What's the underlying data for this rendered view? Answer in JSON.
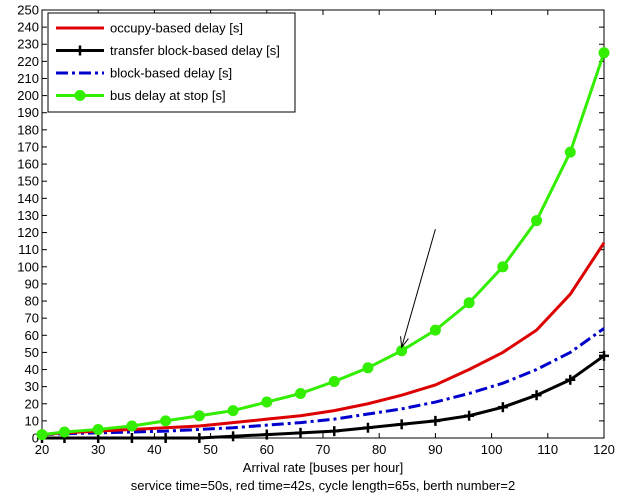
{
  "chart_data": {
    "type": "line",
    "title": "",
    "xlabel": "Arrival rate [buses per hour]",
    "subtitle_below": "service time=50s, red time=42s, cycle length=65s, berth number=2",
    "ylabel": "",
    "xlim": [
      20,
      120
    ],
    "ylim": [
      0,
      250
    ],
    "xticks": [
      20,
      30,
      40,
      50,
      60,
      70,
      80,
      90,
      100,
      110,
      120
    ],
    "yticks": [
      0,
      10,
      20,
      30,
      40,
      50,
      60,
      70,
      80,
      90,
      100,
      110,
      120,
      130,
      140,
      150,
      160,
      170,
      180,
      190,
      200,
      210,
      220,
      230,
      240,
      250
    ],
    "grid": false,
    "legend_position": "top-left",
    "series": [
      {
        "name": "occupy-based delay [s]",
        "color": "#dd0000",
        "style": "solid",
        "marker": "none",
        "x": [
          20,
          24,
          30,
          36,
          42,
          48,
          54,
          60,
          66,
          72,
          78,
          84,
          90,
          96,
          102,
          108,
          114,
          120
        ],
        "y": [
          2,
          3,
          4,
          5,
          6,
          7,
          9,
          11,
          13,
          16,
          20,
          25,
          31,
          40,
          50,
          63,
          84,
          114
        ]
      },
      {
        "name": "transfer block-based delay [s]",
        "color": "#000000",
        "style": "solid",
        "marker": "plus",
        "x": [
          20,
          24,
          30,
          36,
          42,
          48,
          54,
          60,
          66,
          72,
          78,
          84,
          90,
          96,
          102,
          108,
          114,
          120
        ],
        "y": [
          0,
          0,
          0,
          0,
          0,
          0,
          1,
          2,
          3,
          4,
          6,
          8,
          10,
          13,
          18,
          25,
          34,
          48
        ]
      },
      {
        "name": "block-based delay [s]",
        "color": "#0000cc",
        "style": "dashdot",
        "marker": "none",
        "x": [
          20,
          24,
          30,
          36,
          42,
          48,
          54,
          60,
          66,
          72,
          78,
          84,
          90,
          96,
          102,
          108,
          114,
          120
        ],
        "y": [
          2,
          2.5,
          3,
          3.5,
          4,
          5,
          6,
          7.5,
          9,
          11,
          14,
          17,
          21,
          26,
          32,
          40,
          50,
          64
        ]
      },
      {
        "name": "bus delay at stop [s]",
        "color": "#33ee00",
        "style": "solid",
        "marker": "circle",
        "x": [
          20,
          24,
          30,
          36,
          42,
          48,
          54,
          60,
          66,
          72,
          78,
          84,
          90,
          96,
          102,
          108,
          114,
          120
        ],
        "y": [
          2,
          3.5,
          5,
          7,
          10,
          13,
          16,
          21,
          26,
          33,
          41,
          51,
          63,
          79,
          100,
          127,
          167,
          225
        ]
      }
    ],
    "annotations": [
      {
        "type": "arrow",
        "from": [
          90,
          122
        ],
        "to": [
          84,
          53
        ]
      }
    ]
  }
}
